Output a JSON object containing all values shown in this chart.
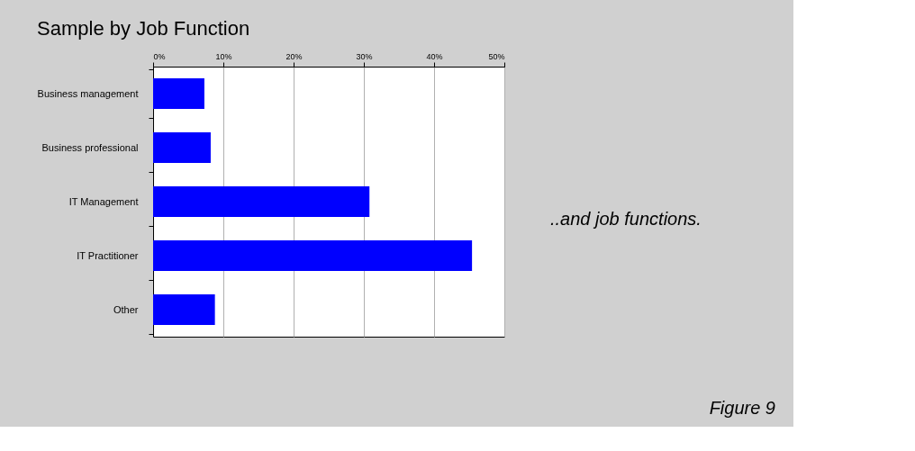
{
  "chart_data": {
    "type": "bar",
    "orientation": "horizontal",
    "title": "Sample by Job Function",
    "categories": [
      "Business management",
      "Business professional",
      "IT Management",
      "IT Practitioner",
      "Other"
    ],
    "values": [
      7.3,
      8.2,
      30.8,
      45.4,
      8.8
    ],
    "color": "#0000ff",
    "xlim": [
      0,
      50
    ],
    "xticks": [
      {
        "value": 0,
        "label": "0%"
      },
      {
        "value": 10,
        "label": "10%"
      },
      {
        "value": 20,
        "label": "20%"
      },
      {
        "value": 30,
        "label": "30%"
      },
      {
        "value": 40,
        "label": "40%"
      },
      {
        "value": 50,
        "label": "50%"
      }
    ],
    "grid": "x",
    "annotations": [
      "..and job functions.",
      "Figure 9"
    ]
  }
}
